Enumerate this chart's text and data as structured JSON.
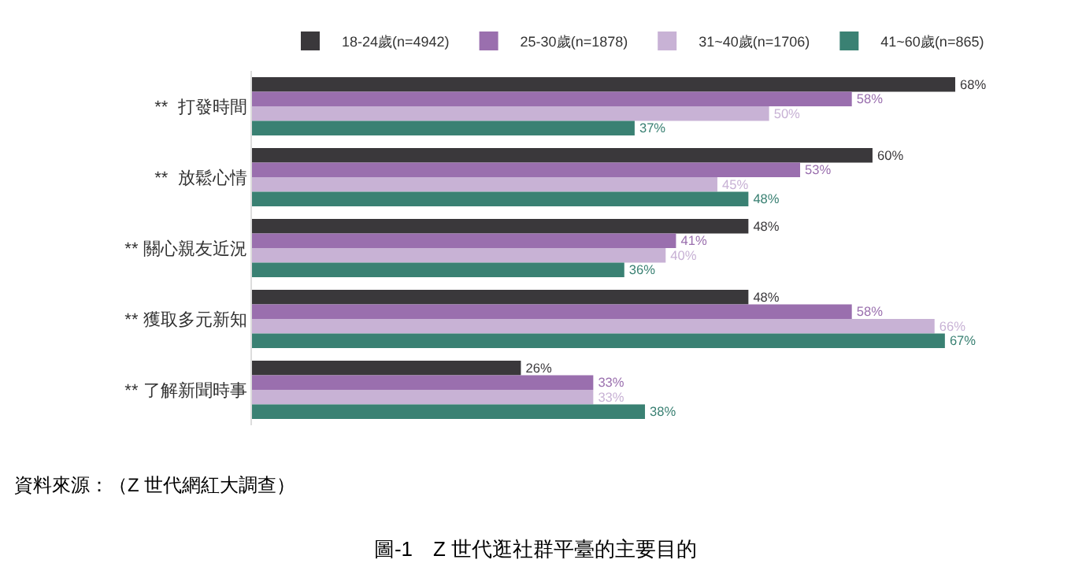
{
  "chart_data": {
    "type": "bar",
    "orientation": "horizontal",
    "title": "圖-1　Z 世代逛社群平臺的主要目的",
    "categories": [
      "**  打發時間",
      "**  放鬆心情",
      "** 關心親友近況",
      "** 獲取多元新知",
      "** 了解新聞時事"
    ],
    "series": [
      {
        "name": "18-24歲(n=4942)",
        "color": "#3a383b",
        "values": [
          68,
          60,
          48,
          48,
          26
        ],
        "value_labels": [
          "68%",
          "60%",
          "48%",
          "48%",
          "26%"
        ]
      },
      {
        "name": "25-30歲(n=1878)",
        "color": "#9a6fae",
        "values": [
          58,
          53,
          41,
          58,
          33
        ],
        "value_labels": [
          "58%",
          "53%",
          "41%",
          "58%",
          "33%"
        ]
      },
      {
        "name": "31~40歲(n=1706)",
        "color": "#c8b2d5",
        "values": [
          50,
          45,
          40,
          66,
          33
        ],
        "value_labels": [
          "50%",
          "45%",
          "40%",
          "66%",
          "33%"
        ]
      },
      {
        "name": "41~60歲(n=865)",
        "color": "#3a8173",
        "values": [
          37,
          48,
          36,
          67,
          38
        ],
        "value_labels": [
          "37%",
          "48%",
          "36%",
          "67%",
          "38%"
        ]
      }
    ],
    "legend": "top right",
    "annotations": [
      "資料來源：（Z 世代網紅大調查）"
    ]
  }
}
